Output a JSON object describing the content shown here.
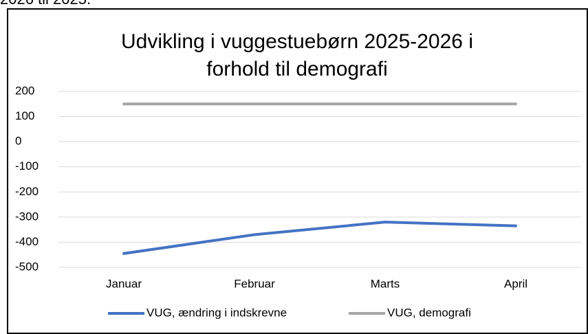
{
  "caption": "2026 til 2025.",
  "chart_data": {
    "type": "line",
    "title": [
      "Udvikling i vuggestuebørn 2025-2026 i",
      "forhold til demografi"
    ],
    "categories": [
      "Januar",
      "Februar",
      "Marts",
      "April"
    ],
    "series": [
      {
        "name": "VUG, ændring i indskrevne",
        "color": "#4472c4",
        "values": [
          -445,
          -370,
          -320,
          -335
        ]
      },
      {
        "name": "VUG, demografi",
        "color": "#a5a5a5",
        "values": [
          150,
          150,
          150,
          150
        ]
      }
    ],
    "ylim": [
      -500,
      200
    ],
    "yticks": [
      -500,
      -400,
      -300,
      -200,
      -100,
      0,
      100,
      200
    ],
    "grid": true,
    "legend": "bottom"
  }
}
